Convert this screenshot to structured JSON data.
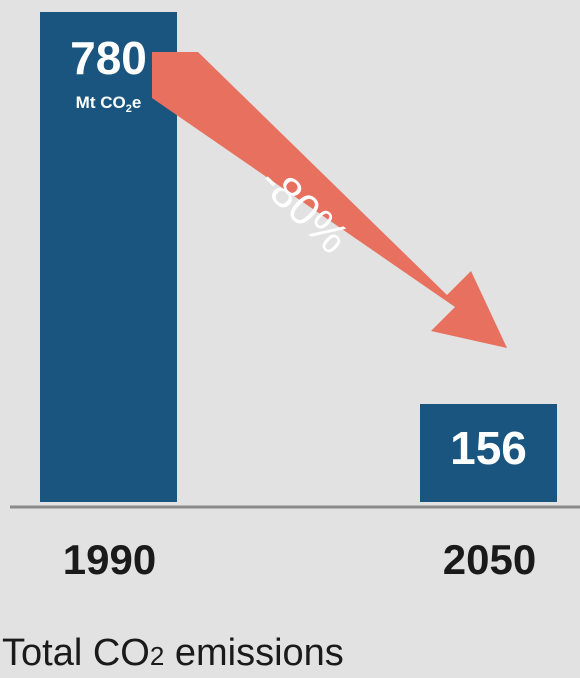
{
  "chart_data": {
    "type": "bar",
    "categories": [
      "1990",
      "2050"
    ],
    "values": [
      780,
      156
    ],
    "value_labels": [
      "780",
      "156"
    ],
    "unit_label": {
      "main": "Mt CO",
      "sub": "2",
      "tail": "e"
    },
    "change_label": "-80%",
    "ylim": [
      0,
      780
    ],
    "grid": false,
    "legend": "none"
  },
  "caption": {
    "main": "Total CO",
    "sub": "2",
    "tail": " emissions"
  },
  "colors": {
    "bar": "#1a5580",
    "arrow": "#e8705e",
    "background": "#e2e2e2",
    "axis": "#8a8a8a"
  }
}
